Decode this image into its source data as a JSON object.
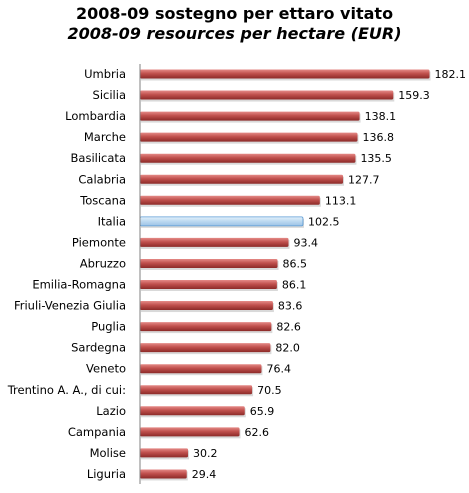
{
  "chart_data": {
    "type": "bar",
    "orientation": "horizontal",
    "title": "2008-09 sostegno per ettaro vitato",
    "subtitle": "2008-09 resources per hectare (EUR)",
    "categories": [
      "Umbria",
      "Sicilia",
      "Lombardia",
      "Marche",
      "Basilicata",
      "Calabria",
      "Toscana",
      "Italia",
      "Piemonte",
      "Abruzzo",
      "Emilia-Romagna",
      "Friuli-Venezia Giulia",
      "Puglia",
      "Sardegna",
      "Veneto",
      "Trentino A. A., di cui:",
      "Lazio",
      "Campania",
      "Molise",
      "Liguria"
    ],
    "values": [
      182.1,
      159.3,
      138.1,
      136.8,
      135.5,
      127.7,
      113.1,
      102.5,
      93.4,
      86.5,
      86.1,
      83.6,
      82.6,
      82.0,
      76.4,
      70.5,
      65.9,
      62.6,
      30.2,
      29.4
    ],
    "value_labels": [
      "182.1",
      "159.3",
      "138.1",
      "136.8",
      "135.5",
      "127.7",
      "113.1",
      "102.5",
      "93.4",
      "86.5",
      "86.1",
      "83.6",
      "82.6",
      "82.0",
      "76.4",
      "70.5",
      "65.9",
      "62.6",
      "30.2",
      "29.4"
    ],
    "highlight_category": "Italia",
    "xlim": [
      0,
      200
    ],
    "grid": false,
    "legend": "none",
    "colors": {
      "bar": "#c0504d",
      "bar_dark": "#8c2a28",
      "bar_light": "#e07a77",
      "highlight": "#bcd9f0",
      "highlight_border": "#5b9bd5",
      "axis": "#808080"
    }
  }
}
